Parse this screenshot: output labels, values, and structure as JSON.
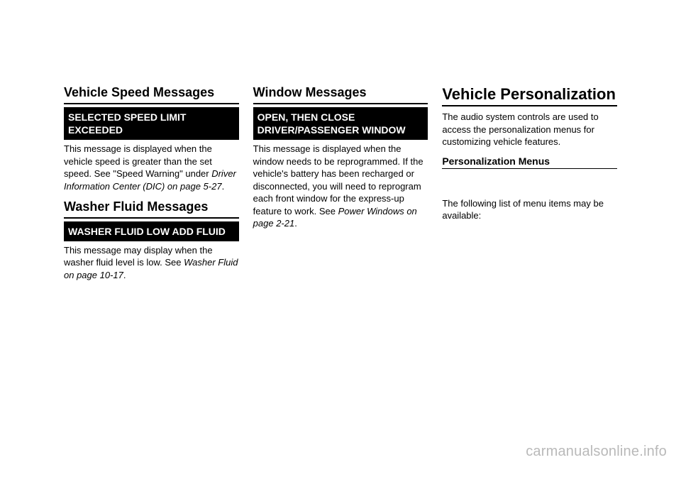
{
  "col1": {
    "vehicle_speed": {
      "heading": "Vehicle Speed Messages",
      "msg_title": "SELECTED SPEED LIMIT EXCEEDED",
      "body_pre": "This message is displayed when the vehicle speed is greater than the set speed. See \"Speed Warning\" under ",
      "body_ref": "Driver Information Center (DIC) on page 5-27",
      "body_post": "."
    },
    "washer": {
      "heading": "Washer Fluid Messages",
      "msg_title": "WASHER FLUID LOW ADD FLUID",
      "body_pre": "This message may display when the washer fluid level is low. See ",
      "body_ref": "Washer Fluid on page 10-17",
      "body_post": "."
    }
  },
  "col2": {
    "window": {
      "heading": "Window Messages",
      "msg_title": "OPEN, THEN CLOSE DRIVER/PASSENGER WINDOW",
      "body_pre": "This message is displayed when the window needs to be reprogrammed. If the vehicle's battery has been recharged or disconnected, you will need to reprogram each front window for the express-up feature to work. See ",
      "body_ref": "Power Windows on page 2-21",
      "body_post": "."
    }
  },
  "col3": {
    "personalization": {
      "heading": "Vehicle Personalization",
      "intro": "The audio system controls are used to access the personalization menus for customizing vehicle features.",
      "sub_heading": "Personalization Menus",
      "list_intro": "The following list of menu items may be available:"
    }
  },
  "watermark": "carmanualsonline.info"
}
